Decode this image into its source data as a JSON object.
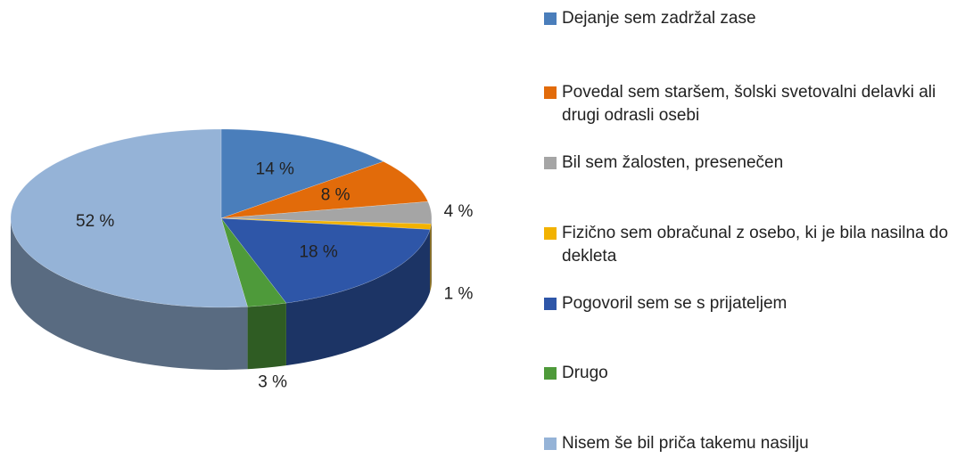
{
  "chart_data": {
    "type": "pie",
    "series": [
      {
        "name": "Dejanje sem zadržal zase",
        "color": "#4a7ebb",
        "values": [
          14
        ],
        "value_labels": [
          "14 %"
        ]
      },
      {
        "name": "Povedal sem staršem, šolski svetovalni delavki ali drugi odrasli osebi",
        "color": "#e26b0a",
        "values": [
          8
        ],
        "value_labels": [
          "8 %"
        ]
      },
      {
        "name": "Bil sem žalosten, presenečen",
        "color": "#a5a5a5",
        "values": [
          4
        ],
        "value_labels": [
          "4 %"
        ]
      },
      {
        "name": "Fizično sem obračunal z osebo, ki je bila nasilna do dekleta",
        "color": "#f2b200",
        "values": [
          1
        ],
        "value_labels": [
          "1 %"
        ]
      },
      {
        "name": "Pogovoril sem se s prijateljem",
        "color": "#2e56a8",
        "values": [
          18
        ],
        "value_labels": [
          "18 %"
        ]
      },
      {
        "name": "Drugo",
        "color": "#4e9a3a",
        "values": [
          3
        ],
        "value_labels": [
          "3 %"
        ]
      },
      {
        "name": "Nisem še bil priča takemu nasilju",
        "color": "#95b3d7",
        "values": [
          52
        ],
        "value_labels": [
          "52 %"
        ]
      }
    ],
    "legend": "right"
  }
}
